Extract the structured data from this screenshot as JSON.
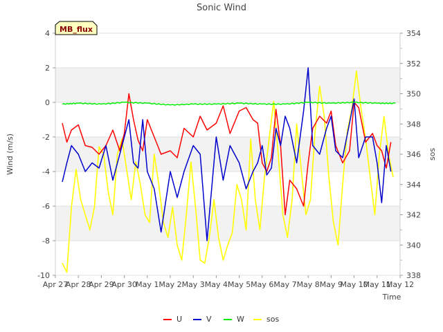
{
  "chart_data": {
    "type": "line",
    "title": "Sonic Wind",
    "xlabel": "Time",
    "ylabel": "Wind (m/s)",
    "y2label": "sos",
    "badge": "MB_flux",
    "ylim": [
      -10,
      4
    ],
    "y2lim": [
      338,
      354
    ],
    "xlim": [
      0,
      15
    ],
    "x_tick_labels": [
      "Apr 27",
      "Apr 28",
      "Apr 29",
      "Apr 30",
      "May 1",
      "May 2",
      "May 3",
      "May 4",
      "May 5",
      "May 6",
      "May 7",
      "May 8",
      "May 9",
      "May 10",
      "May 11",
      "May 12"
    ],
    "y_ticks": [
      -10,
      -8,
      -6,
      -4,
      -2,
      0,
      2,
      4
    ],
    "y2_ticks": [
      338,
      340,
      342,
      344,
      346,
      348,
      350,
      352,
      354
    ],
    "x_unit": "days since Apr 27 00:00",
    "grid": "horizontal alternating bands",
    "legend_position": "bottom-center",
    "series": [
      {
        "name": "U",
        "color": "#ff0000",
        "axis": "left",
        "x": [
          0.3,
          0.5,
          0.7,
          1.0,
          1.3,
          1.6,
          1.9,
          2.2,
          2.5,
          2.8,
          3.0,
          3.2,
          3.4,
          3.6,
          3.8,
          4.0,
          4.3,
          4.6,
          5.0,
          5.3,
          5.6,
          6.0,
          6.3,
          6.6,
          7.0,
          7.3,
          7.6,
          8.0,
          8.3,
          8.6,
          8.8,
          9.0,
          9.2,
          9.4,
          9.6,
          9.8,
          10.0,
          10.2,
          10.5,
          10.8,
          11.0,
          11.2,
          11.5,
          11.8,
          12.0,
          12.2,
          12.5,
          12.8,
          13.0,
          13.2,
          13.5,
          13.8,
          14.0,
          14.2,
          14.4,
          14.6
        ],
        "values": [
          -1.2,
          -2.3,
          -1.6,
          -1.3,
          -2.5,
          -2.6,
          -3.0,
          -2.5,
          -1.6,
          -2.8,
          -1.8,
          0.5,
          -1.0,
          -2.2,
          -2.8,
          -1.0,
          -2.0,
          -3.0,
          -2.8,
          -3.2,
          -1.5,
          -2.0,
          -0.8,
          -1.6,
          -1.2,
          -0.2,
          -1.8,
          -0.5,
          -0.3,
          -1.0,
          -1.2,
          -3.5,
          -4.0,
          -3.2,
          -0.4,
          -2.5,
          -6.5,
          -4.5,
          -5.0,
          -6.0,
          -3.5,
          -1.5,
          -0.8,
          -1.2,
          -0.5,
          -2.5,
          -3.5,
          -2.8,
          0.0,
          -0.3,
          -2.3,
          -1.8,
          -2.5,
          -2.8,
          -3.8,
          -2.3
        ]
      },
      {
        "name": "V",
        "color": "#0000cc",
        "axis": "left",
        "x": [
          0.3,
          0.5,
          0.7,
          1.0,
          1.3,
          1.6,
          1.9,
          2.2,
          2.5,
          2.8,
          3.0,
          3.2,
          3.4,
          3.6,
          3.8,
          4.0,
          4.3,
          4.6,
          5.0,
          5.3,
          5.6,
          6.0,
          6.3,
          6.6,
          7.0,
          7.3,
          7.6,
          8.0,
          8.3,
          8.6,
          8.8,
          9.0,
          9.2,
          9.4,
          9.6,
          9.8,
          10.0,
          10.2,
          10.5,
          10.8,
          11.0,
          11.2,
          11.5,
          11.8,
          12.0,
          12.2,
          12.5,
          12.8,
          13.0,
          13.2,
          13.5,
          13.8,
          14.0,
          14.2,
          14.4,
          14.6
        ],
        "values": [
          -4.6,
          -3.5,
          -2.5,
          -3.0,
          -4.0,
          -3.5,
          -3.8,
          -2.5,
          -4.5,
          -3.0,
          -2.0,
          -1.0,
          -3.5,
          -3.8,
          -1.0,
          -4.0,
          -5.0,
          -7.5,
          -4.0,
          -5.5,
          -4.0,
          -2.5,
          -3.0,
          -8.0,
          -2.0,
          -4.5,
          -2.5,
          -3.5,
          -5.0,
          -4.0,
          -3.5,
          -2.5,
          -4.2,
          -3.8,
          -1.5,
          -2.5,
          -0.8,
          -1.5,
          -3.5,
          -0.5,
          2.0,
          -2.5,
          -3.0,
          -1.5,
          -0.8,
          -2.8,
          -3.2,
          -1.2,
          0.2,
          -3.2,
          -2.0,
          -2.0,
          -3.5,
          -5.8,
          -2.5,
          -4.0
        ]
      },
      {
        "name": "W",
        "color": "#00ee00",
        "axis": "left",
        "x": [
          0.3,
          1.0,
          2.0,
          3.0,
          4.0,
          5.0,
          6.0,
          7.0,
          8.0,
          9.0,
          10.0,
          11.0,
          12.0,
          13.0,
          14.0,
          14.8
        ],
        "values": [
          -0.1,
          -0.05,
          -0.1,
          0.0,
          -0.05,
          -0.15,
          -0.1,
          -0.1,
          -0.05,
          -0.1,
          -0.1,
          0.0,
          -0.05,
          0.0,
          -0.05,
          -0.05
        ]
      },
      {
        "name": "sos",
        "color": "#ffff00",
        "axis": "right",
        "x": [
          0.3,
          0.5,
          0.7,
          0.9,
          1.1,
          1.3,
          1.5,
          1.7,
          1.9,
          2.1,
          2.3,
          2.5,
          2.7,
          2.9,
          3.1,
          3.3,
          3.5,
          3.7,
          3.9,
          4.1,
          4.3,
          4.5,
          4.7,
          4.9,
          5.1,
          5.3,
          5.5,
          5.7,
          5.9,
          6.1,
          6.3,
          6.5,
          6.7,
          6.9,
          7.1,
          7.3,
          7.5,
          7.7,
          7.9,
          8.1,
          8.3,
          8.5,
          8.7,
          8.9,
          9.1,
          9.3,
          9.5,
          9.7,
          9.9,
          10.1,
          10.3,
          10.5,
          10.7,
          10.9,
          11.1,
          11.3,
          11.5,
          11.7,
          11.9,
          12.1,
          12.3,
          12.5,
          12.7,
          12.9,
          13.1,
          13.3,
          13.5,
          13.7,
          13.9,
          14.1,
          14.3,
          14.5,
          14.7
        ],
        "values": [
          338.8,
          338.2,
          342.5,
          345.0,
          343.0,
          342.0,
          341.0,
          342.5,
          346.5,
          346.0,
          343.5,
          342.0,
          346.0,
          347.0,
          345.0,
          343.0,
          345.5,
          344.0,
          342.0,
          341.5,
          346.0,
          344.0,
          341.5,
          340.5,
          342.5,
          340.0,
          339.0,
          342.0,
          345.5,
          342.5,
          339.0,
          338.8,
          340.5,
          343.0,
          340.5,
          339.0,
          340.0,
          340.8,
          344.0,
          343.0,
          341.0,
          347.0,
          343.0,
          341.0,
          344.5,
          347.0,
          349.5,
          346.0,
          342.0,
          340.5,
          343.0,
          348.0,
          345.0,
          342.0,
          343.0,
          347.5,
          350.5,
          348.5,
          344.5,
          341.5,
          340.0,
          344.0,
          347.5,
          349.0,
          351.5,
          349.0,
          347.0,
          344.5,
          342.0,
          346.0,
          348.5,
          346.0,
          344.5
        ]
      }
    ]
  }
}
